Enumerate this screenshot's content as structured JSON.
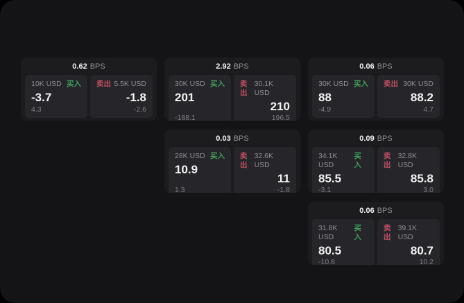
{
  "theme": {
    "container_bg": "#141416",
    "card_bg": "#1c1c1e",
    "panel_bg": "#26262a",
    "text_primary": "#f2f2f2",
    "text_muted": "#8e8e92",
    "text_muted2": "#7e7e82",
    "buy_color": "#3f9e5f",
    "sell_color": "#c05064"
  },
  "labels": {
    "bps_suffix": "BPS",
    "buy": "买入",
    "sell": "卖出"
  },
  "cards": [
    {
      "bps": "0.62",
      "row": 1,
      "col": 1,
      "buy": {
        "amount": "10K USD",
        "value": "-3.7",
        "sub": "4.3"
      },
      "sell": {
        "amount": "5.5K USD",
        "value": "-1.8",
        "sub": "-2.6"
      }
    },
    {
      "bps": "2.92",
      "row": 1,
      "col": 2,
      "buy": {
        "amount": "30K USD",
        "value": "201",
        "sub": "-188.1"
      },
      "sell": {
        "amount": "30.1K USD",
        "value": "210",
        "sub": "196.5"
      }
    },
    {
      "bps": "0.06",
      "row": 1,
      "col": 3,
      "buy": {
        "amount": "30K USD",
        "value": "88",
        "sub": "-4.9"
      },
      "sell": {
        "amount": "30K USD",
        "value": "88.2",
        "sub": "4.7"
      }
    },
    {
      "bps": "0.03",
      "row": 2,
      "col": 2,
      "buy": {
        "amount": "28K USD",
        "value": "10.9",
        "sub": "1.3"
      },
      "sell": {
        "amount": "32.6K USD",
        "value": "11",
        "sub": "-1.8"
      }
    },
    {
      "bps": "0.09",
      "row": 2,
      "col": 3,
      "buy": {
        "amount": "34.1K USD",
        "value": "85.5",
        "sub": "-3.1"
      },
      "sell": {
        "amount": "32.8K USD",
        "value": "85.8",
        "sub": "3.0"
      }
    },
    {
      "bps": "0.06",
      "row": 3,
      "col": 3,
      "buy": {
        "amount": "31.8K USD",
        "value": "80.5",
        "sub": "-10.8"
      },
      "sell": {
        "amount": "39.1K USD",
        "value": "80.7",
        "sub": "10.2"
      }
    }
  ]
}
